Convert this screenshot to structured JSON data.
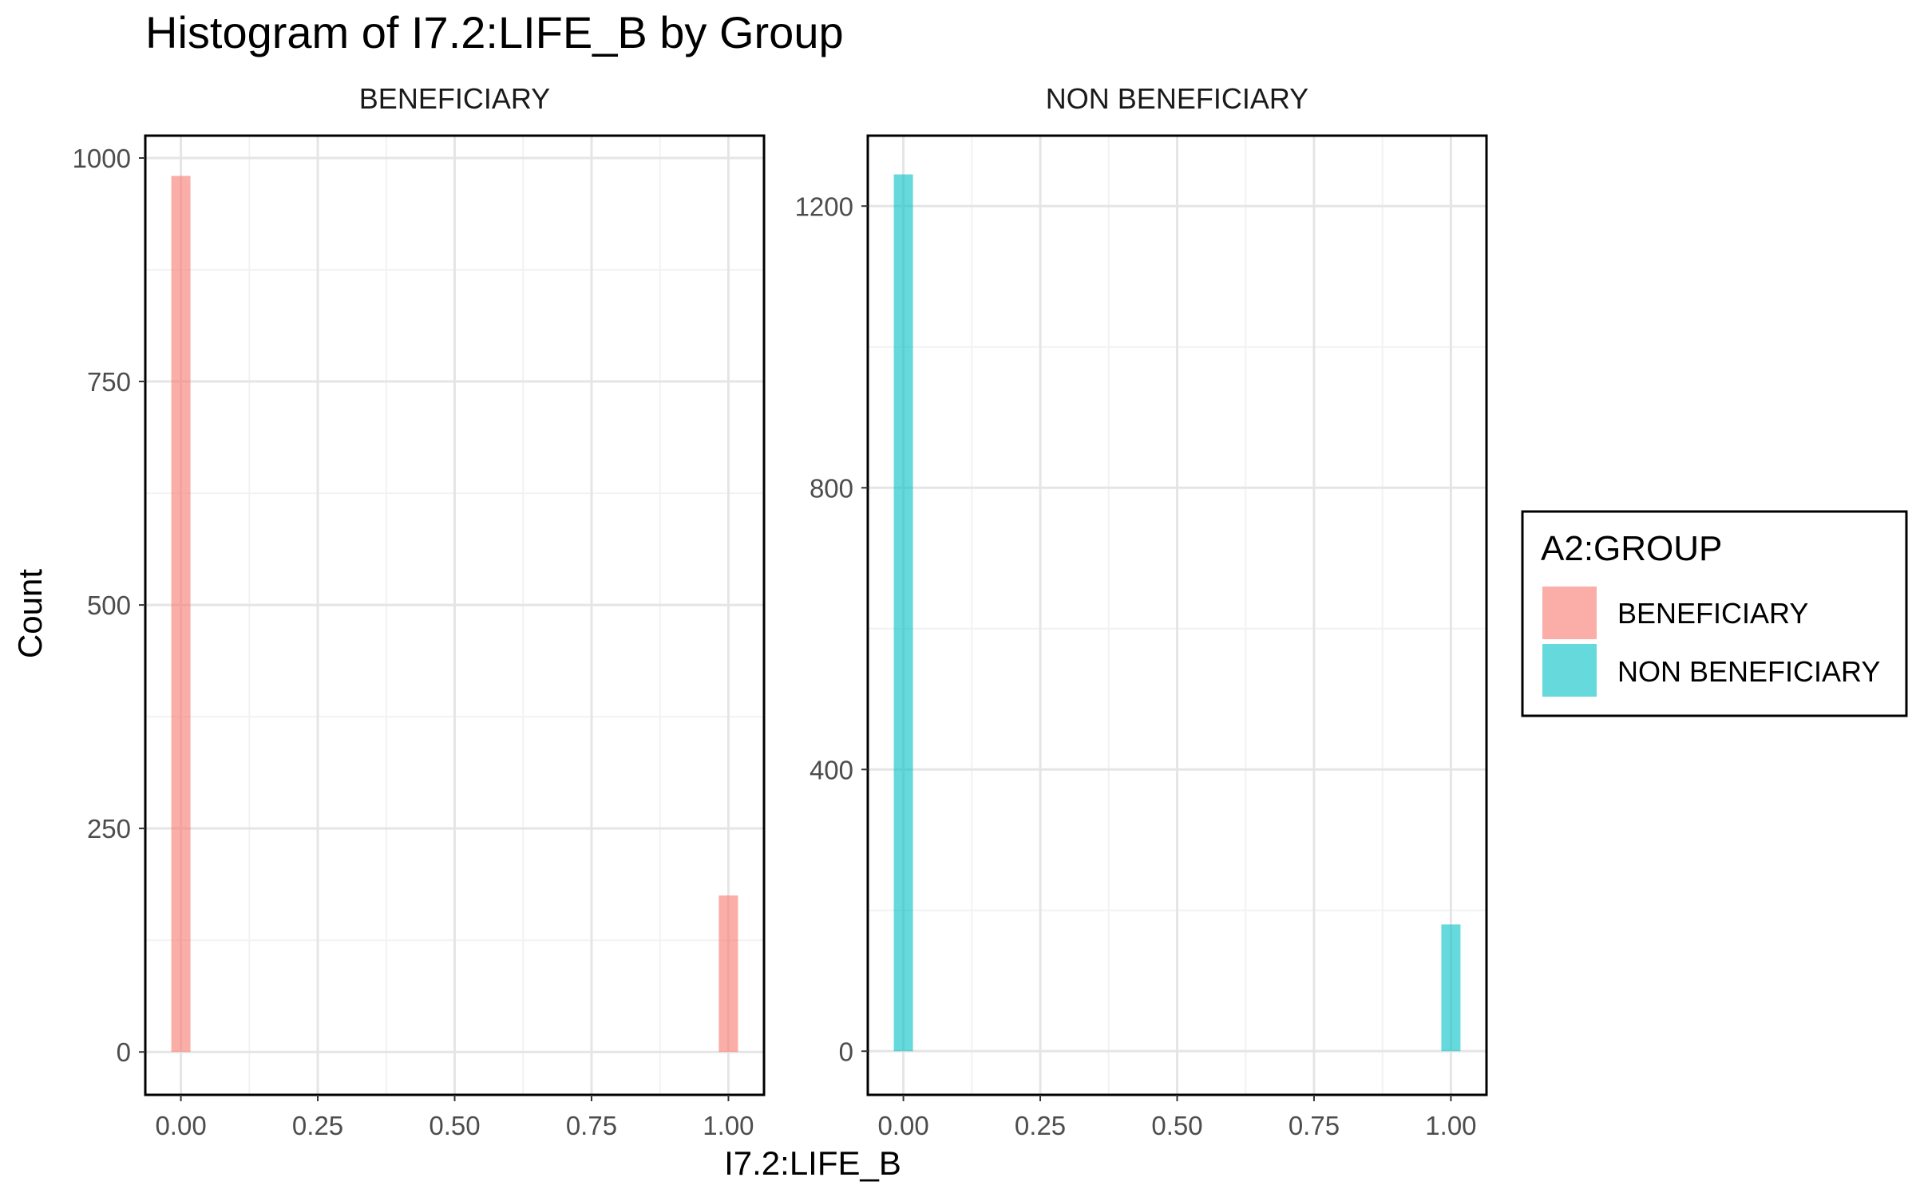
{
  "chart_data": {
    "type": "bar",
    "title": "Histogram of I7.2:LIFE_B by Group",
    "xlabel": "I7.2:LIFE_B",
    "ylabel": "Count",
    "grid": true,
    "legend": {
      "title": "A2:GROUP",
      "placement": "right",
      "entries": [
        {
          "label": "BENEFICIARY",
          "color": "#F8766D"
        },
        {
          "label": "NON BENEFICIARY",
          "color": "#00BFC4"
        }
      ]
    },
    "panels": [
      {
        "strip_label": "BENEFICIARY",
        "color": "#F8766D",
        "xlim": [
          -0.065,
          1.065
        ],
        "ylim": [
          -48,
          1025
        ],
        "x_ticks": [
          "0.00",
          "0.25",
          "0.50",
          "0.75",
          "1.00"
        ],
        "x_tick_values": [
          0,
          0.25,
          0.5,
          0.75,
          1
        ],
        "y_ticks": [
          "0",
          "250",
          "500",
          "750",
          "1000"
        ],
        "y_tick_values": [
          0,
          250,
          500,
          750,
          1000
        ],
        "bins": [
          {
            "x": 0,
            "count": 980
          },
          {
            "x": 1,
            "count": 175
          }
        ]
      },
      {
        "strip_label": "NON BENEFICIARY",
        "color": "#00BFC4",
        "xlim": [
          -0.065,
          1.065
        ],
        "ylim": [
          -62,
          1300
        ],
        "x_ticks": [
          "0.00",
          "0.25",
          "0.50",
          "0.75",
          "1.00"
        ],
        "x_tick_values": [
          0,
          0.25,
          0.5,
          0.75,
          1
        ],
        "y_ticks": [
          "0",
          "400",
          "800",
          "1200"
        ],
        "y_tick_values": [
          0,
          400,
          800,
          1200
        ],
        "bins": [
          {
            "x": 0,
            "count": 1245
          },
          {
            "x": 1,
            "count": 180
          }
        ]
      }
    ]
  }
}
